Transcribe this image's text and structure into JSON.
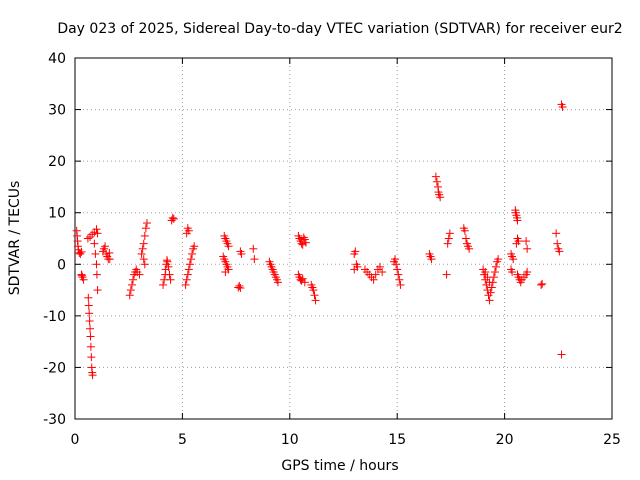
{
  "colors": {
    "series": "#ff0000",
    "grid": "#a0a0a0",
    "axis": "#000000"
  },
  "chart_data": {
    "type": "scatter",
    "title": "Day 023 of 2025, Sidereal Day-to-day VTEC variation (SDTVAR) for receiver eur2",
    "xlabel": "GPS time / hours",
    "ylabel": "SDTVAR / TECUs",
    "xlim": [
      0,
      25
    ],
    "ylim": [
      -30,
      40
    ],
    "xticks": [
      0,
      5,
      10,
      15,
      20,
      25
    ],
    "yticks": [
      -30,
      -20,
      -10,
      0,
      10,
      20,
      30,
      40
    ],
    "xtick_labels": [
      "0",
      "5",
      "10",
      "15",
      "20",
      "25"
    ],
    "ytick_labels": [
      "-30",
      "-20",
      "-10",
      "0",
      "10",
      "20",
      "30",
      "40"
    ],
    "grid": true,
    "marker": "+",
    "series": [
      {
        "name": "SDTVAR",
        "points": [
          [
            0.08,
            6.5
          ],
          [
            0.1,
            5.5
          ],
          [
            0.12,
            4.5
          ],
          [
            0.14,
            3.5
          ],
          [
            0.16,
            2.8
          ],
          [
            0.2,
            2.2
          ],
          [
            0.25,
            2.0
          ],
          [
            0.3,
            2.4
          ],
          [
            0.3,
            -2.0
          ],
          [
            0.35,
            -2.5
          ],
          [
            0.4,
            -3.0
          ],
          [
            0.32,
            -2.2
          ],
          [
            0.6,
            5.0
          ],
          [
            0.7,
            5.3
          ],
          [
            0.8,
            5.8
          ],
          [
            0.9,
            6.2
          ],
          [
            1.0,
            6.8
          ],
          [
            1.05,
            6.0
          ],
          [
            0.62,
            -6.5
          ],
          [
            0.64,
            -8.0
          ],
          [
            0.66,
            -9.5
          ],
          [
            0.68,
            -11.0
          ],
          [
            0.7,
            -12.5
          ],
          [
            0.72,
            -14.0
          ],
          [
            0.74,
            -16.0
          ],
          [
            0.76,
            -18.0
          ],
          [
            0.78,
            -20.0
          ],
          [
            0.8,
            -21.0
          ],
          [
            0.82,
            -21.5
          ],
          [
            0.9,
            4.0
          ],
          [
            0.95,
            2.0
          ],
          [
            1.0,
            0.0
          ],
          [
            1.02,
            -2.0
          ],
          [
            1.05,
            -5.0
          ],
          [
            1.3,
            2.5
          ],
          [
            1.35,
            3.0
          ],
          [
            1.4,
            3.5
          ],
          [
            1.45,
            2.0
          ],
          [
            1.5,
            1.5
          ],
          [
            1.55,
            1.0
          ],
          [
            1.6,
            2.2
          ],
          [
            1.62,
            1.0
          ],
          [
            2.55,
            -6.0
          ],
          [
            2.6,
            -5.0
          ],
          [
            2.65,
            -4.0
          ],
          [
            2.7,
            -3.0
          ],
          [
            2.75,
            -2.0
          ],
          [
            2.8,
            -1.5
          ],
          [
            2.85,
            -1.0
          ],
          [
            2.9,
            -1.5
          ],
          [
            3.0,
            -2.0
          ],
          [
            3.1,
            2.0
          ],
          [
            3.15,
            3.0
          ],
          [
            3.2,
            4.0
          ],
          [
            3.25,
            5.5
          ],
          [
            3.3,
            7.0
          ],
          [
            3.35,
            8.0
          ],
          [
            3.2,
            1.0
          ],
          [
            3.25,
            0.0
          ],
          [
            4.1,
            -4.0
          ],
          [
            4.15,
            -3.0
          ],
          [
            4.2,
            -2.0
          ],
          [
            4.22,
            -1.0
          ],
          [
            4.25,
            0.0
          ],
          [
            4.28,
            0.8
          ],
          [
            4.3,
            0.5
          ],
          [
            4.35,
            -0.5
          ],
          [
            4.4,
            -2.0
          ],
          [
            4.45,
            -3.0
          ],
          [
            4.5,
            8.5
          ],
          [
            4.55,
            9.0
          ],
          [
            4.6,
            8.8
          ],
          [
            5.15,
            -4.0
          ],
          [
            5.2,
            -3.0
          ],
          [
            5.25,
            -2.0
          ],
          [
            5.3,
            -1.0
          ],
          [
            5.35,
            0.0
          ],
          [
            5.4,
            1.0
          ],
          [
            5.45,
            2.0
          ],
          [
            5.5,
            3.0
          ],
          [
            5.55,
            3.5
          ],
          [
            5.2,
            6.0
          ],
          [
            5.25,
            7.0
          ],
          [
            5.3,
            6.5
          ],
          [
            6.9,
            1.5
          ],
          [
            6.95,
            1.0
          ],
          [
            7.0,
            0.5
          ],
          [
            7.05,
            0.0
          ],
          [
            7.1,
            -0.5
          ],
          [
            7.15,
            -1.0
          ],
          [
            7.0,
            -1.5
          ],
          [
            6.95,
            5.5
          ],
          [
            7.0,
            5.0
          ],
          [
            7.05,
            4.5
          ],
          [
            7.1,
            4.0
          ],
          [
            7.15,
            3.5
          ],
          [
            7.6,
            -4.5
          ],
          [
            7.65,
            -4.2
          ],
          [
            7.7,
            -4.6
          ],
          [
            7.7,
            2.5
          ],
          [
            7.75,
            2.0
          ],
          [
            8.3,
            3.0
          ],
          [
            8.35,
            1.0
          ],
          [
            9.05,
            0.5
          ],
          [
            9.1,
            0.0
          ],
          [
            9.15,
            -0.5
          ],
          [
            9.2,
            -1.0
          ],
          [
            9.25,
            -1.5
          ],
          [
            9.3,
            -2.0
          ],
          [
            9.35,
            -2.5
          ],
          [
            9.4,
            -3.0
          ],
          [
            9.45,
            -3.5
          ],
          [
            10.4,
            5.5
          ],
          [
            10.45,
            5.0
          ],
          [
            10.5,
            4.5
          ],
          [
            10.55,
            4.0
          ],
          [
            10.6,
            3.8
          ],
          [
            10.65,
            5.2
          ],
          [
            10.7,
            4.8
          ],
          [
            10.75,
            4.2
          ],
          [
            10.4,
            -2.0
          ],
          [
            10.45,
            -2.5
          ],
          [
            10.5,
            -3.0
          ],
          [
            10.55,
            -3.2
          ],
          [
            10.6,
            -2.8
          ],
          [
            10.7,
            -3.5
          ],
          [
            11.0,
            -4.0
          ],
          [
            11.05,
            -4.5
          ],
          [
            11.1,
            -5.0
          ],
          [
            11.15,
            -6.0
          ],
          [
            11.2,
            -7.0
          ],
          [
            13.0,
            2.0
          ],
          [
            13.05,
            2.5
          ],
          [
            13.1,
            0.0
          ],
          [
            13.15,
            -0.5
          ],
          [
            13.0,
            -1.0
          ],
          [
            13.5,
            -1.0
          ],
          [
            13.6,
            -1.5
          ],
          [
            13.7,
            -2.0
          ],
          [
            13.8,
            -2.5
          ],
          [
            13.9,
            -3.0
          ],
          [
            14.0,
            -2.0
          ],
          [
            14.1,
            -1.0
          ],
          [
            14.2,
            -0.5
          ],
          [
            14.3,
            -1.5
          ],
          [
            14.85,
            0.5
          ],
          [
            14.9,
            1.0
          ],
          [
            14.95,
            0.0
          ],
          [
            15.0,
            -1.0
          ],
          [
            15.05,
            -2.0
          ],
          [
            15.1,
            -3.0
          ],
          [
            15.15,
            -4.0
          ],
          [
            16.5,
            2.0
          ],
          [
            16.55,
            1.5
          ],
          [
            16.6,
            1.0
          ],
          [
            16.8,
            17.0
          ],
          [
            16.85,
            16.0
          ],
          [
            16.9,
            15.0
          ],
          [
            16.92,
            14.0
          ],
          [
            16.95,
            13.5
          ],
          [
            17.0,
            13.0
          ],
          [
            17.3,
            -2.0
          ],
          [
            17.35,
            4.0
          ],
          [
            17.4,
            5.0
          ],
          [
            17.45,
            6.0
          ],
          [
            18.1,
            7.0
          ],
          [
            18.15,
            6.5
          ],
          [
            18.2,
            5.0
          ],
          [
            18.25,
            4.0
          ],
          [
            18.3,
            3.5
          ],
          [
            18.35,
            3.0
          ],
          [
            19.0,
            -1.0
          ],
          [
            19.05,
            -2.0
          ],
          [
            19.1,
            -3.0
          ],
          [
            19.15,
            -4.0
          ],
          [
            19.2,
            -5.0
          ],
          [
            19.25,
            -6.0
          ],
          [
            19.3,
            -7.0
          ],
          [
            19.35,
            -5.5
          ],
          [
            19.4,
            -4.5
          ],
          [
            19.45,
            -3.5
          ],
          [
            19.5,
            -2.5
          ],
          [
            19.55,
            -1.5
          ],
          [
            19.6,
            -0.5
          ],
          [
            19.65,
            0.5
          ],
          [
            19.7,
            1.0
          ],
          [
            19.1,
            -1.5
          ],
          [
            19.2,
            -2.5
          ],
          [
            19.3,
            -3.5
          ],
          [
            20.3,
            2.0
          ],
          [
            20.35,
            1.5
          ],
          [
            20.4,
            1.0
          ],
          [
            20.3,
            -1.0
          ],
          [
            20.35,
            -1.5
          ],
          [
            20.5,
            10.5
          ],
          [
            20.52,
            10.0
          ],
          [
            20.55,
            9.5
          ],
          [
            20.58,
            9.0
          ],
          [
            20.6,
            8.5
          ],
          [
            20.6,
            5.0
          ],
          [
            20.65,
            4.5
          ],
          [
            20.55,
            4.0
          ],
          [
            20.6,
            -2.0
          ],
          [
            20.65,
            -2.5
          ],
          [
            20.7,
            -3.0
          ],
          [
            20.75,
            -3.5
          ],
          [
            20.8,
            -3.0
          ],
          [
            20.9,
            -2.5
          ],
          [
            21.0,
            -2.0
          ],
          [
            21.05,
            -1.5
          ],
          [
            21.0,
            4.5
          ],
          [
            21.05,
            3.0
          ],
          [
            21.7,
            -4.0
          ],
          [
            21.75,
            -3.8
          ],
          [
            22.4,
            6.0
          ],
          [
            22.45,
            4.0
          ],
          [
            22.5,
            3.0
          ],
          [
            22.55,
            2.5
          ],
          [
            22.65,
            31.0
          ],
          [
            22.7,
            30.5
          ],
          [
            22.65,
            -17.5
          ]
        ]
      }
    ]
  }
}
